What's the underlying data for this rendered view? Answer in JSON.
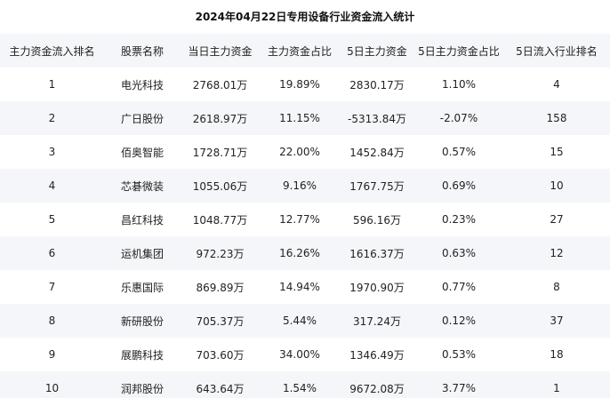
{
  "title": "2024年04月22日专用设备行业资金流入统计",
  "headers": [
    "主力资金流入排名",
    "股票名称",
    "当日主力资金",
    "主力资金占比",
    "5日主力资金",
    "5日主力资金占比",
    "5日流入行业排名"
  ],
  "rows": [
    [
      "1",
      "电光科技",
      "2768.01万",
      "19.89%",
      "2830.17万",
      "1.10%",
      "4"
    ],
    [
      "2",
      "广日股份",
      "2618.97万",
      "11.15%",
      "-5313.84万",
      "-2.07%",
      "158"
    ],
    [
      "3",
      "佰奥智能",
      "1728.71万",
      "22.00%",
      "1452.84万",
      "0.57%",
      "15"
    ],
    [
      "4",
      "芯碁微装",
      "1055.06万",
      "9.16%",
      "1767.75万",
      "0.69%",
      "10"
    ],
    [
      "5",
      "昌红科技",
      "1048.77万",
      "12.77%",
      "596.16万",
      "0.23%",
      "27"
    ],
    [
      "6",
      "运机集团",
      "972.23万",
      "16.26%",
      "1616.37万",
      "0.63%",
      "12"
    ],
    [
      "7",
      "乐惠国际",
      "869.89万",
      "14.94%",
      "1970.90万",
      "0.77%",
      "8"
    ],
    [
      "8",
      "新研股份",
      "705.37万",
      "5.44%",
      "317.24万",
      "0.12%",
      "37"
    ],
    [
      "9",
      "展鹏科技",
      "703.60万",
      "34.00%",
      "1346.49万",
      "0.53%",
      "18"
    ],
    [
      "10",
      "润邦股份",
      "643.64万",
      "1.54%",
      "9672.08万",
      "3.77%",
      "1"
    ]
  ]
}
